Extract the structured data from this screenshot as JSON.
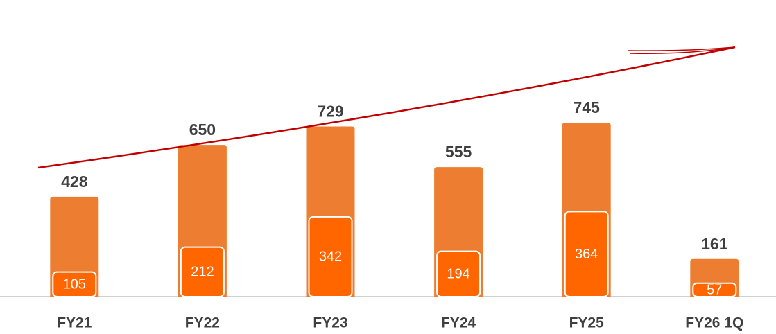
{
  "chart_data": {
    "type": "bar",
    "categories": [
      "FY21",
      "FY22",
      "FY23",
      "FY24",
      "FY25",
      "FY26 1Q"
    ],
    "series": [
      {
        "color": "#ed7d31",
        "values": [
          428,
          650,
          729,
          555,
          745,
          161
        ]
      },
      {
        "color": "#ff6600",
        "values": [
          105,
          212,
          342,
          194,
          364,
          57
        ]
      }
    ],
    "ylim": [
      0,
      1250
    ]
  }
}
